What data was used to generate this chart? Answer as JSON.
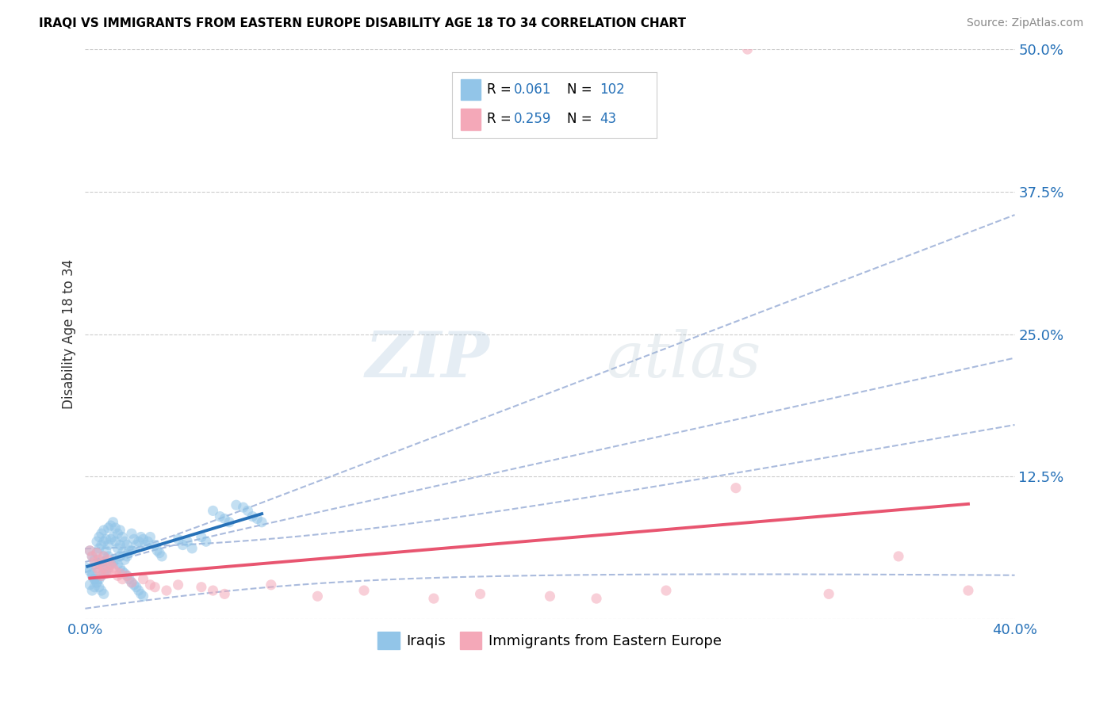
{
  "title": "IRAQI VS IMMIGRANTS FROM EASTERN EUROPE DISABILITY AGE 18 TO 34 CORRELATION CHART",
  "source": "Source: ZipAtlas.com",
  "ylabel": "Disability Age 18 to 34",
  "xlim": [
    0.0,
    0.4
  ],
  "ylim": [
    0.0,
    0.5
  ],
  "xticks": [
    0.0,
    0.1,
    0.2,
    0.3,
    0.4
  ],
  "yticks": [
    0.0,
    0.125,
    0.25,
    0.375,
    0.5
  ],
  "blue_color": "#92c5e8",
  "pink_color": "#f4a8b8",
  "blue_line_color": "#2671b8",
  "pink_line_color": "#e85570",
  "dashed_line_color": "#aabbdd",
  "N_color": "#2671b8",
  "label1": "Iraqis",
  "label2": "Immigrants from Eastern Europe",
  "watermark_zip": "ZIP",
  "watermark_atlas": "atlas",
  "grid_color": "#cccccc",
  "background_color": "#ffffff",
  "iraqis_x": [
    0.002,
    0.003,
    0.003,
    0.004,
    0.004,
    0.005,
    0.005,
    0.005,
    0.006,
    0.006,
    0.006,
    0.007,
    0.007,
    0.007,
    0.008,
    0.008,
    0.008,
    0.009,
    0.009,
    0.01,
    0.01,
    0.01,
    0.011,
    0.011,
    0.012,
    0.012,
    0.013,
    0.013,
    0.014,
    0.014,
    0.015,
    0.015,
    0.015,
    0.016,
    0.016,
    0.017,
    0.017,
    0.018,
    0.018,
    0.019,
    0.02,
    0.02,
    0.021,
    0.022,
    0.023,
    0.024,
    0.025,
    0.026,
    0.027,
    0.028,
    0.002,
    0.003,
    0.004,
    0.005,
    0.006,
    0.007,
    0.008,
    0.009,
    0.01,
    0.011,
    0.012,
    0.013,
    0.014,
    0.015,
    0.016,
    0.017,
    0.018,
    0.019,
    0.02,
    0.021,
    0.022,
    0.023,
    0.024,
    0.025,
    0.03,
    0.031,
    0.032,
    0.033,
    0.04,
    0.042,
    0.044,
    0.046,
    0.05,
    0.052,
    0.055,
    0.058,
    0.06,
    0.062,
    0.065,
    0.068,
    0.07,
    0.072,
    0.074,
    0.076,
    0.001,
    0.002,
    0.003,
    0.004,
    0.005,
    0.006,
    0.007,
    0.008
  ],
  "iraqis_y": [
    0.06,
    0.055,
    0.04,
    0.052,
    0.035,
    0.068,
    0.058,
    0.045,
    0.072,
    0.062,
    0.048,
    0.075,
    0.065,
    0.05,
    0.078,
    0.068,
    0.055,
    0.07,
    0.06,
    0.08,
    0.065,
    0.055,
    0.082,
    0.07,
    0.085,
    0.072,
    0.08,
    0.068,
    0.075,
    0.062,
    0.078,
    0.065,
    0.055,
    0.072,
    0.058,
    0.068,
    0.052,
    0.065,
    0.055,
    0.06,
    0.075,
    0.06,
    0.07,
    0.065,
    0.068,
    0.072,
    0.07,
    0.065,
    0.068,
    0.072,
    0.03,
    0.025,
    0.028,
    0.032,
    0.035,
    0.038,
    0.04,
    0.042,
    0.045,
    0.048,
    0.05,
    0.052,
    0.048,
    0.045,
    0.042,
    0.04,
    0.038,
    0.035,
    0.032,
    0.03,
    0.028,
    0.025,
    0.022,
    0.02,
    0.065,
    0.06,
    0.058,
    0.055,
    0.07,
    0.065,
    0.068,
    0.062,
    0.072,
    0.068,
    0.095,
    0.09,
    0.088,
    0.085,
    0.1,
    0.098,
    0.095,
    0.09,
    0.088,
    0.085,
    0.045,
    0.042,
    0.038,
    0.035,
    0.032,
    0.028,
    0.025,
    0.022
  ],
  "eastern_x": [
    0.002,
    0.003,
    0.004,
    0.005,
    0.005,
    0.006,
    0.006,
    0.007,
    0.007,
    0.008,
    0.008,
    0.009,
    0.01,
    0.01,
    0.011,
    0.012,
    0.013,
    0.014,
    0.015,
    0.016,
    0.018,
    0.02,
    0.025,
    0.028,
    0.03,
    0.035,
    0.04,
    0.05,
    0.055,
    0.06,
    0.08,
    0.1,
    0.12,
    0.15,
    0.17,
    0.2,
    0.22,
    0.25,
    0.28,
    0.32,
    0.35,
    0.38,
    0.285
  ],
  "eastern_y": [
    0.06,
    0.055,
    0.05,
    0.045,
    0.058,
    0.042,
    0.052,
    0.048,
    0.038,
    0.055,
    0.045,
    0.04,
    0.052,
    0.042,
    0.048,
    0.045,
    0.042,
    0.038,
    0.04,
    0.035,
    0.038,
    0.032,
    0.035,
    0.03,
    0.028,
    0.025,
    0.03,
    0.028,
    0.025,
    0.022,
    0.03,
    0.02,
    0.025,
    0.018,
    0.022,
    0.02,
    0.018,
    0.025,
    0.115,
    0.022,
    0.055,
    0.025,
    0.5
  ]
}
